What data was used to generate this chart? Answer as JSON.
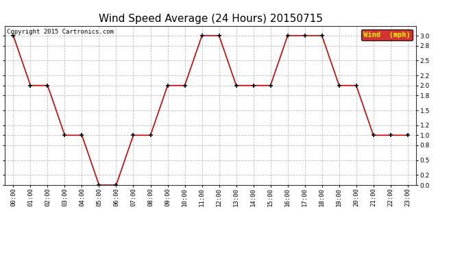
{
  "title": "Wind Speed Average (24 Hours) 20150715",
  "copyright": "Copyright 2015 Cartronics.com",
  "legend_label": "Wind  (mph)",
  "x_labels": [
    "00:00",
    "01:00",
    "02:00",
    "03:00",
    "04:00",
    "05:00",
    "06:00",
    "07:00",
    "08:00",
    "09:00",
    "10:00",
    "11:00",
    "12:00",
    "13:00",
    "14:00",
    "15:00",
    "16:00",
    "17:00",
    "18:00",
    "19:00",
    "20:00",
    "21:00",
    "22:00",
    "23:00"
  ],
  "y_values": [
    3.0,
    2.0,
    2.0,
    1.0,
    1.0,
    0.0,
    0.0,
    1.0,
    1.0,
    2.0,
    2.0,
    3.0,
    3.0,
    2.0,
    2.0,
    2.0,
    3.0,
    3.0,
    3.0,
    2.0,
    2.0,
    1.0,
    1.0,
    1.0
  ],
  "line_color": "#cc0000",
  "marker_color": "#000000",
  "background_color": "#ffffff",
  "grid_color": "#bbbbbb",
  "ylim": [
    0.0,
    3.2
  ],
  "yticks": [
    0.0,
    0.2,
    0.5,
    0.8,
    1.0,
    1.2,
    1.5,
    1.8,
    2.0,
    2.2,
    2.5,
    2.8,
    3.0
  ],
  "title_fontsize": 11,
  "copyright_fontsize": 6.5,
  "tick_fontsize": 6.5,
  "legend_bg": "#cc0000",
  "legend_text_color": "#ffff00",
  "legend_fontsize": 7.5
}
